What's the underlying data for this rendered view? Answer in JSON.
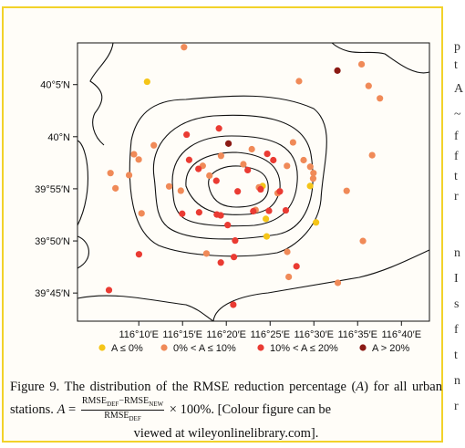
{
  "chart_data": {
    "type": "scatter",
    "title": "",
    "xlabel": "",
    "ylabel": "",
    "xlim": [
      116.05,
      116.72
    ],
    "ylim": [
      39.705,
      40.15
    ],
    "x_ticks": [
      {
        "v": 116.1667,
        "label": "116°10′E"
      },
      {
        "v": 116.25,
        "label": "116°15′E"
      },
      {
        "v": 116.3333,
        "label": "116°20′E"
      },
      {
        "v": 116.4167,
        "label": "116°25′E"
      },
      {
        "v": 116.5,
        "label": "116°30′E"
      },
      {
        "v": 116.5833,
        "label": "116°35′E"
      },
      {
        "v": 116.6667,
        "label": "116°40′E"
      }
    ],
    "y_ticks": [
      {
        "v": 39.75,
        "label": "39°45′N"
      },
      {
        "v": 39.8333,
        "label": "39°50′N"
      },
      {
        "v": 39.9167,
        "label": "39°55′N"
      },
      {
        "v": 40.0,
        "label": "40°N"
      },
      {
        "v": 40.0833,
        "label": "40°5′N"
      }
    ],
    "legend": {
      "placement": "bottom",
      "entries": [
        {
          "label": "A ≤ 0%",
          "color": "#f5c518",
          "key": "c1"
        },
        {
          "label": "0% < A ≤ 10%",
          "color": "#f08a58",
          "key": "c2"
        },
        {
          "label": "10% < A ≤ 20%",
          "color": "#ea3b33",
          "key": "c3"
        },
        {
          "label": "A > 20%",
          "color": "#8b1a14",
          "key": "c4"
        }
      ]
    },
    "series": [
      {
        "class": "c1",
        "points": [
          [
            116.1825,
            40.0879
          ],
          [
            116.4024,
            39.9211
          ],
          [
            116.4086,
            39.8686
          ],
          [
            116.4101,
            39.8405
          ],
          [
            116.4928,
            39.9211
          ],
          [
            116.5041,
            39.8629
          ]
        ]
      },
      {
        "class": "c2",
        "points": [
          [
            116.2528,
            40.1431
          ],
          [
            116.4717,
            40.0887
          ],
          [
            116.5908,
            40.1158
          ],
          [
            116.6042,
            40.0812
          ],
          [
            116.6257,
            40.0613
          ],
          [
            116.1953,
            39.9862
          ],
          [
            116.1575,
            39.9719
          ],
          [
            116.1665,
            39.9635
          ],
          [
            116.1482,
            39.9385
          ],
          [
            116.2244,
            39.9205
          ],
          [
            116.1128,
            39.9418
          ],
          [
            116.1223,
            39.9175
          ],
          [
            116.1719,
            39.8774
          ],
          [
            116.2467,
            39.9136
          ],
          [
            116.2884,
            39.9534
          ],
          [
            116.3012,
            39.9378
          ],
          [
            116.3232,
            39.9694
          ],
          [
            116.3658,
            39.9559
          ],
          [
            116.3955,
            39.919
          ],
          [
            116.389,
            39.8829
          ],
          [
            116.4311,
            39.9097
          ],
          [
            116.4488,
            39.9533
          ],
          [
            116.4805,
            39.9625
          ],
          [
            116.4992,
            39.9418
          ],
          [
            116.4931,
            39.9519
          ],
          [
            116.3818,
            39.98
          ],
          [
            116.4603,
            39.9909
          ],
          [
            116.4986,
            39.9331
          ],
          [
            116.5624,
            39.9134
          ],
          [
            116.6109,
            39.9704
          ],
          [
            116.4493,
            39.8159
          ],
          [
            116.4521,
            39.7758
          ],
          [
            116.5934,
            39.8332
          ],
          [
            116.5456,
            39.7664
          ],
          [
            116.2955,
            39.8132
          ]
        ]
      },
      {
        "class": "c3",
        "points": [
          [
            116.3193,
            40.0132
          ],
          [
            116.2577,
            40.0033
          ],
          [
            116.2625,
            39.9629
          ],
          [
            116.2803,
            39.9485
          ],
          [
            116.3143,
            39.9295
          ],
          [
            116.3153,
            39.8755
          ],
          [
            116.2815,
            39.879
          ],
          [
            116.2493,
            39.8768
          ],
          [
            116.3226,
            39.8742
          ],
          [
            116.3549,
            39.9125
          ],
          [
            116.374,
            39.9466
          ],
          [
            116.3846,
            39.8808
          ],
          [
            116.4145,
            39.8815
          ],
          [
            116.4228,
            39.9625
          ],
          [
            116.4352,
            39.9125
          ],
          [
            116.4465,
            39.8822
          ],
          [
            116.3359,
            39.8587
          ],
          [
            116.3501,
            39.8339
          ],
          [
            116.4112,
            39.9726
          ],
          [
            116.3987,
            39.9158
          ],
          [
            116.3478,
            39.8076
          ],
          [
            116.3228,
            39.7987
          ],
          [
            116.4669,
            39.7927
          ],
          [
            116.167,
            39.8119
          ],
          [
            116.1099,
            39.7547
          ],
          [
            116.3466,
            39.7313
          ]
        ]
      },
      {
        "class": "c4",
        "points": [
          [
            116.3374,
            39.989
          ],
          [
            116.5448,
            40.1057
          ]
        ]
      }
    ]
  },
  "caption": {
    "lead": "Figure 9. The distribution of the RMSE reduction percentage (",
    "var": "A",
    "lead_end": ") for",
    "line2_start": "all urban stations.",
    "eq_var": "A",
    "eq_sign": "=",
    "num_part1": "RMSE",
    "num_sub1": "DEF",
    "num_mid": "−RMSE",
    "num_sub2": "NEW",
    "den_part": "RMSE",
    "den_sub": "DEF",
    "times": "× 100%.",
    "line2_end": "[Colour figure can be",
    "line3": "viewed at wileyonlinelibrary.com]."
  },
  "side_text": [
    "p",
    "t",
    "A",
    "~",
    "f",
    "f",
    "t",
    "r",
    "n",
    "I",
    "s",
    "f",
    "t",
    "n",
    "r"
  ]
}
